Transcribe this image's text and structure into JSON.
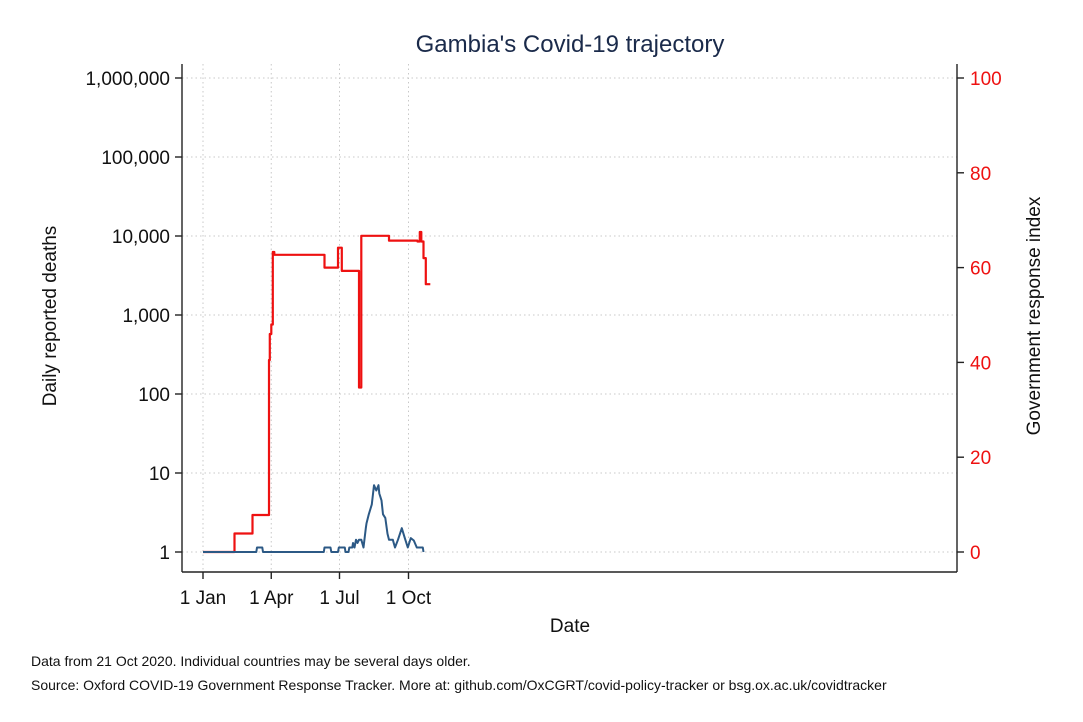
{
  "chart_data": {
    "type": "line",
    "title": "Gambia's Covid-19 trajectory",
    "xlabel": "Date",
    "ylabel_left": "Daily reported deaths",
    "ylabel_right": "Government response index",
    "x_tick_labels": [
      "1 Jan",
      "1 Apr",
      "1 Jul",
      "1 Oct"
    ],
    "x_tick_dates": [
      "2020-01-01",
      "2020-04-01",
      "2020-07-01",
      "2020-10-01"
    ],
    "xlim": [
      "2020-01-01",
      "2020-10-21"
    ],
    "y_left_scale": "log",
    "y_left_ticks": [
      "1",
      "10",
      "100",
      "1,000",
      "10,000",
      "100,000",
      "1,000,000"
    ],
    "y_left_tick_values": [
      1,
      10,
      100,
      1000,
      10000,
      100000,
      1000000
    ],
    "y_left_lim": [
      1,
      1000000
    ],
    "y_right_ticks": [
      "0",
      "20",
      "40",
      "60",
      "80",
      "100"
    ],
    "y_right_tick_values": [
      0,
      20,
      40,
      60,
      80,
      100
    ],
    "y_right_lim": [
      0,
      100
    ],
    "grid": true,
    "colors": {
      "deaths": "#2c5985",
      "index": "#ee1111",
      "title": "#1a2a4a",
      "grid": "#c8c8c8"
    },
    "series": [
      {
        "axis": "right",
        "x": [
          "2020-01-01",
          "2020-02-12",
          "2020-02-12",
          "2020-03-07",
          "2020-03-07",
          "2020-03-29",
          "2020-03-29",
          "2020-03-30",
          "2020-03-30",
          "2020-04-01",
          "2020-04-01",
          "2020-04-03",
          "2020-04-03",
          "2020-04-05",
          "2020-04-05",
          "2020-06-11",
          "2020-06-11",
          "2020-06-29",
          "2020-06-29",
          "2020-07-04",
          "2020-07-04",
          "2020-07-27",
          "2020-07-27",
          "2020-07-30",
          "2020-07-30",
          "2020-09-05",
          "2020-09-05",
          "2020-10-13",
          "2020-10-13",
          "2020-10-16",
          "2020-10-16",
          "2020-10-18",
          "2020-10-18",
          "2020-10-21",
          "2020-10-21",
          "2020-10-24",
          "2020-10-24",
          "2020-10-30"
        ],
        "y": [
          0,
          0,
          3.9,
          3.9,
          7.8,
          7.8,
          40.5,
          40.5,
          46,
          46,
          48,
          48,
          63.3,
          63.3,
          62.7,
          62.7,
          60,
          60,
          64.2,
          64.2,
          59.3,
          59.3,
          34.7,
          34.7,
          66.7,
          66.7,
          65.7,
          65.7,
          65.5,
          65.5,
          67.5,
          67.5,
          65.5,
          65.5,
          62,
          62,
          56.5,
          56.5
        ]
      },
      {
        "axis": "left",
        "x": [
          "2020-01-01",
          "2020-03-12",
          "2020-03-13",
          "2020-03-20",
          "2020-03-21",
          "2020-06-10",
          "2020-06-11",
          "2020-06-19",
          "2020-06-20",
          "2020-06-29",
          "2020-06-30",
          "2020-07-08",
          "2020-07-09",
          "2020-07-13",
          "2020-07-14",
          "2020-07-18",
          "2020-07-19",
          "2020-07-21",
          "2020-07-23",
          "2020-07-25",
          "2020-07-27",
          "2020-07-30",
          "2020-08-02",
          "2020-08-05",
          "2020-08-06",
          "2020-08-09",
          "2020-08-13",
          "2020-08-16",
          "2020-08-19",
          "2020-08-22",
          "2020-08-23",
          "2020-08-26",
          "2020-08-28",
          "2020-08-31",
          "2020-09-03",
          "2020-09-05",
          "2020-09-10",
          "2020-09-13",
          "2020-09-17",
          "2020-09-22",
          "2020-09-26",
          "2020-09-30",
          "2020-10-04",
          "2020-10-08",
          "2020-10-12",
          "2020-10-16",
          "2020-10-20",
          "2020-10-21"
        ],
        "y": [
          1,
          1,
          1.14,
          1.14,
          1,
          1,
          1.14,
          1.14,
          1,
          1,
          1.14,
          1.14,
          1,
          1,
          1.14,
          1.14,
          1.3,
          1.14,
          1.43,
          1.3,
          1.43,
          1.43,
          1.14,
          2,
          2.3,
          3,
          4,
          7,
          6,
          7,
          5.5,
          4.5,
          3,
          2.7,
          1.7,
          1.43,
          1.43,
          1.14,
          1.43,
          2,
          1.5,
          1.14,
          1.5,
          1.4,
          1.14,
          1.14,
          1.14,
          1
        ]
      }
    ]
  },
  "notes": {
    "line1": "Data from 21 Oct 2020. Individual countries may be several days older.",
    "line2": "Source: Oxford COVID-19 Government Response Tracker. More at: github.com/OxCGRT/covid-policy-tracker or bsg.ox.ac.uk/covidtracker"
  }
}
